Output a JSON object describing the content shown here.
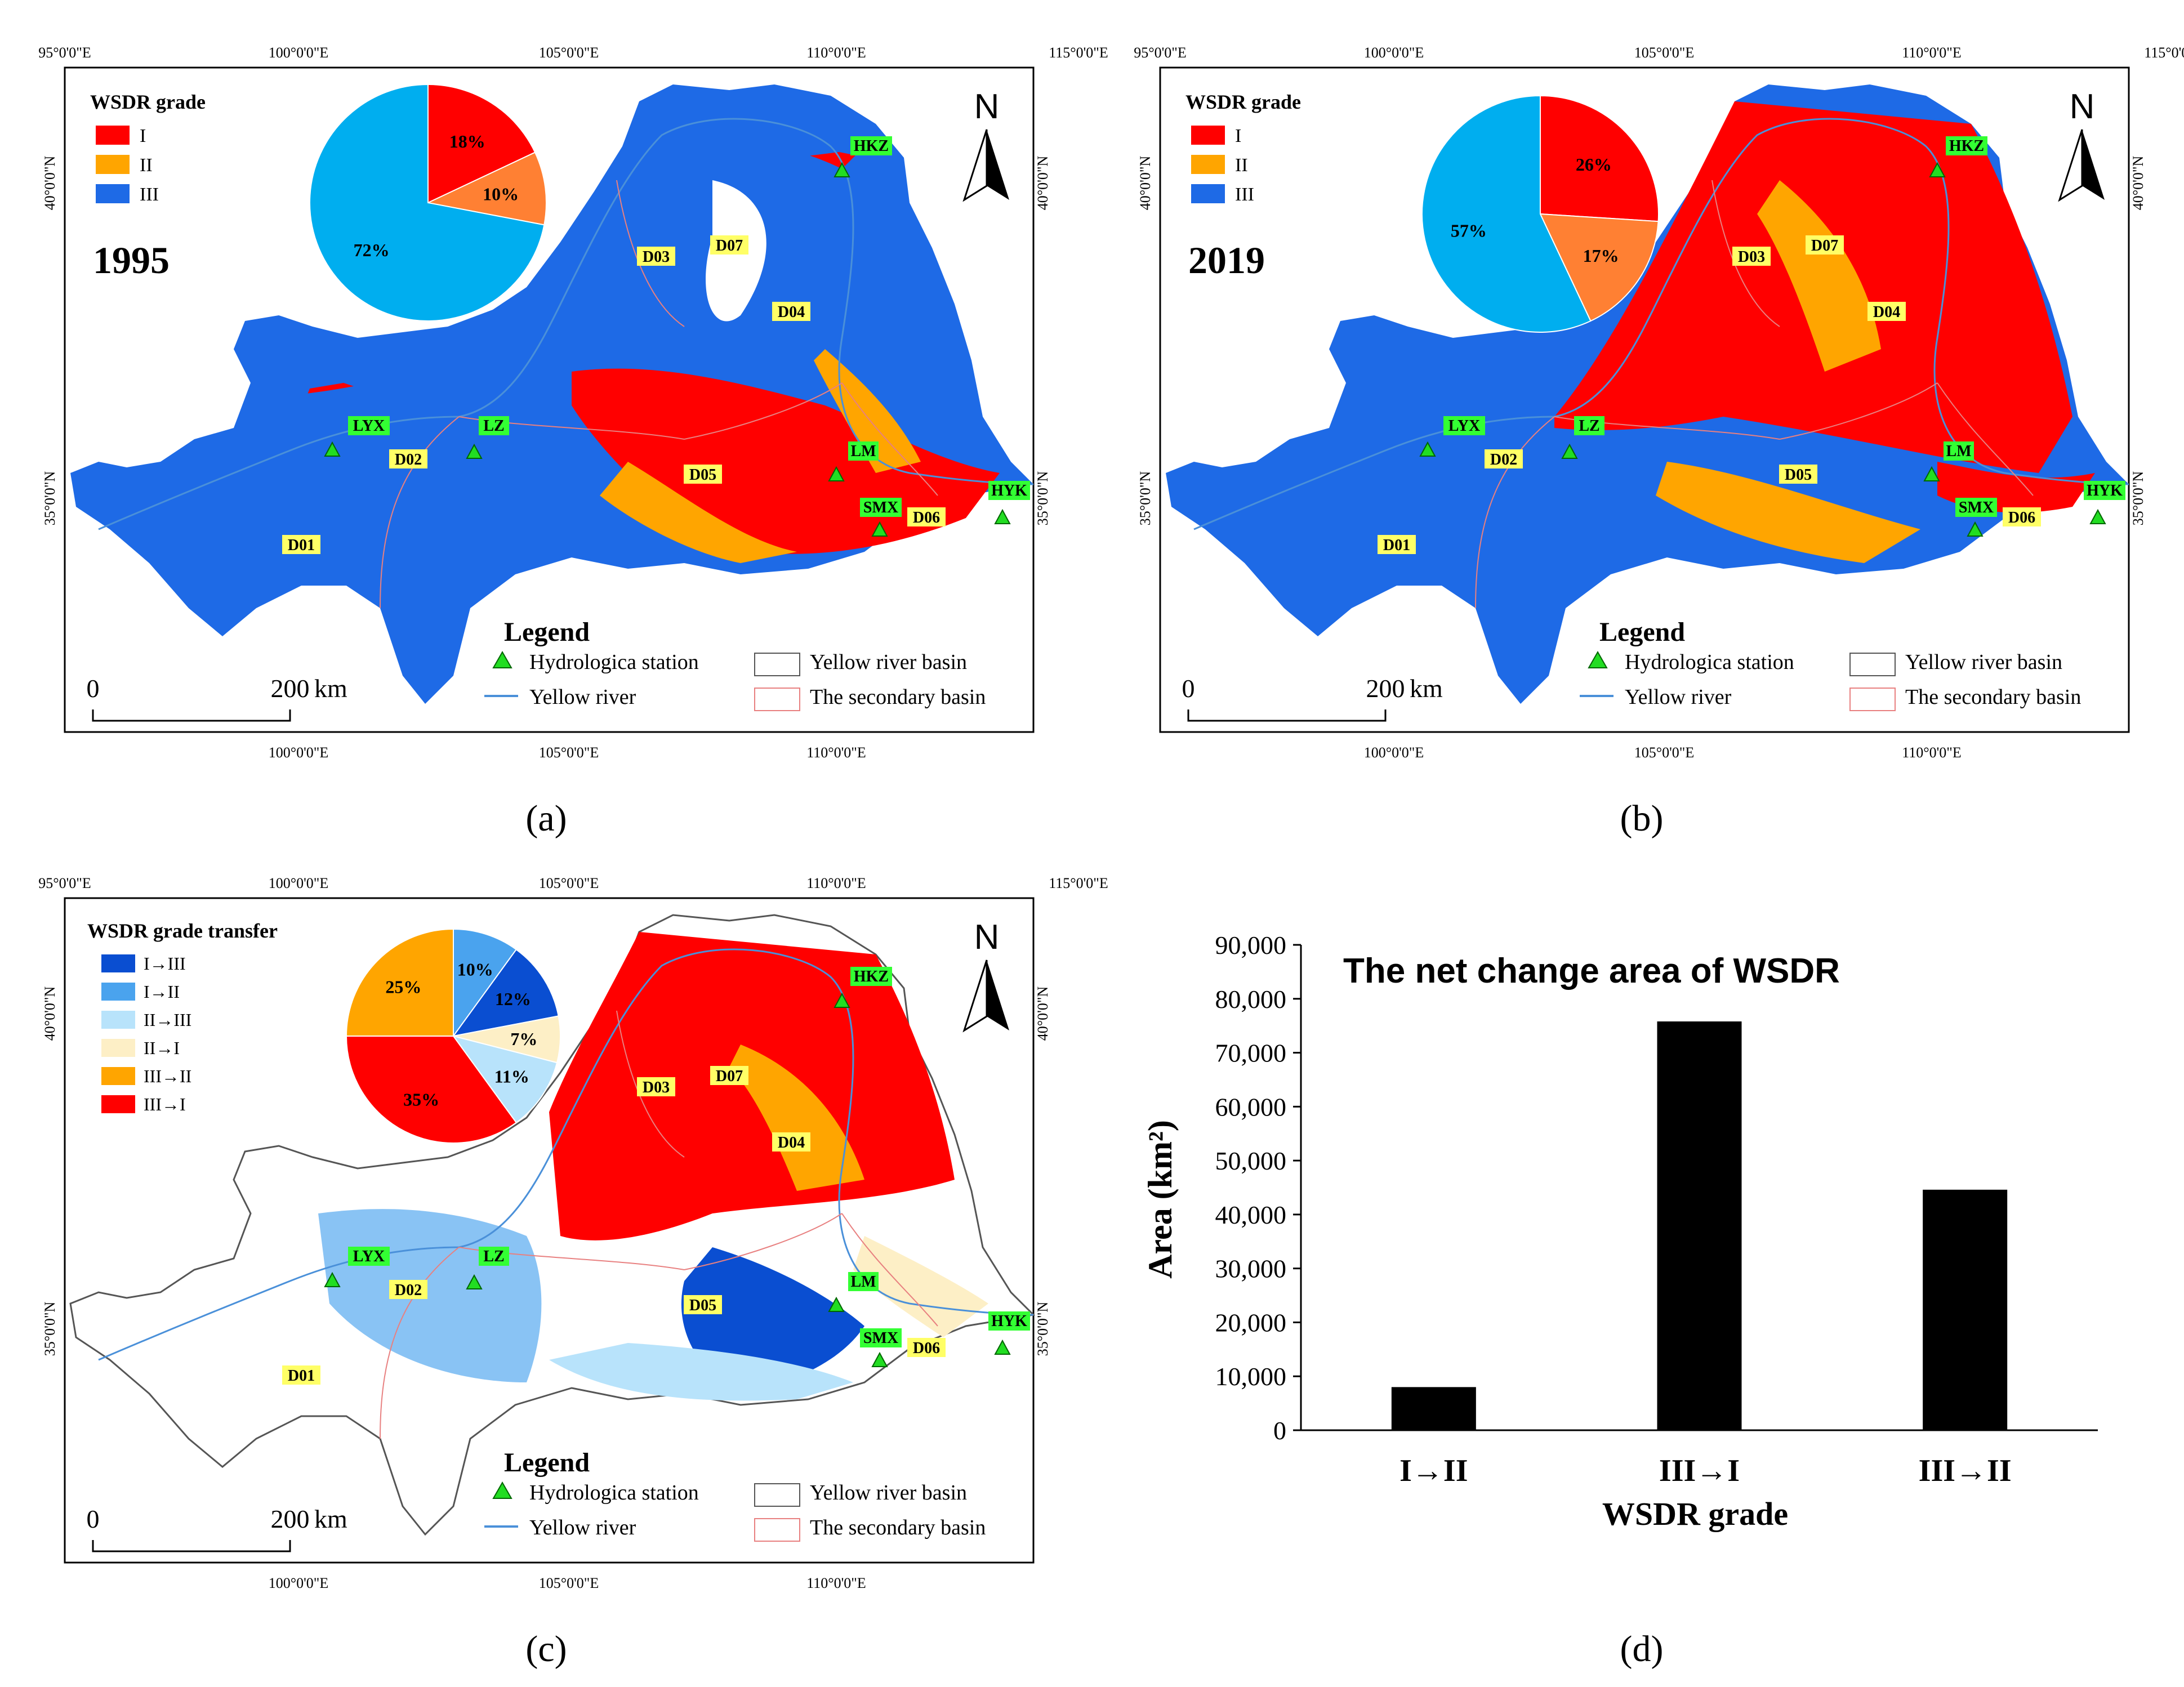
{
  "colors": {
    "grade_I": "#ff0000",
    "grade_II": "#ffa500",
    "grade_III": "#1e6ae6",
    "pie_I": "#ff0000",
    "pie_II": "#ff8033",
    "pie_III": "#00aeef",
    "t_I_III": "#0a4ed1",
    "t_I_II": "#4aa3ee",
    "t_II_III": "#b8e3fb",
    "t_II_I": "#fdefc6",
    "t_III_II": "#ffa500",
    "t_III_I": "#ff0000",
    "station": "#22dd22",
    "label_bg": "#ffff66",
    "station_label_bg": "#33ff33",
    "river": "#4a90d9",
    "basin_outline": "#555555",
    "secondary_basin": "#e88080"
  },
  "axis_ticks": {
    "lon": [
      "95°0'0\"E",
      "100°0'0\"E",
      "105°0'0\"E",
      "110°0'0\"E",
      "115°0'0\"E"
    ],
    "lon_bottom": [
      "100°0'0\"E",
      "105°0'0\"E",
      "110°0'0\"E"
    ],
    "lat": [
      "40°0'0\"N",
      "35°0'0\"N"
    ]
  },
  "basins": [
    "D01",
    "D02",
    "D03",
    "D04",
    "D05",
    "D06",
    "D07"
  ],
  "stations": [
    "LYX",
    "LZ",
    "HKZ",
    "LM",
    "SMX",
    "HYK"
  ],
  "north": "N",
  "scale": {
    "zero": "0",
    "length": "200",
    "unit": "km"
  },
  "legend": {
    "title": "Legend",
    "station": "Hydrologica station",
    "river": "Yellow river",
    "basin": "Yellow river basin",
    "secondary": "The secondary basin"
  },
  "panel_a": {
    "label": "(a)",
    "year": "1995",
    "legend_title": "WSDR grade",
    "legend_items": [
      "I",
      "II",
      "III"
    ],
    "pie": [
      {
        "label": "18%",
        "value": 18
      },
      {
        "label": "10%",
        "value": 10
      },
      {
        "label": "72%",
        "value": 72
      }
    ]
  },
  "panel_b": {
    "label": "(b)",
    "year": "2019",
    "legend_title": "WSDR grade",
    "legend_items": [
      "I",
      "II",
      "III"
    ],
    "pie": [
      {
        "label": "26%",
        "value": 26
      },
      {
        "label": "17%",
        "value": 17
      },
      {
        "label": "57%",
        "value": 57
      }
    ]
  },
  "panel_c": {
    "label": "(c)",
    "legend_title": "WSDR grade transfer",
    "legend_items": [
      "I→III",
      "I→II",
      "II→III",
      "II→I",
      "III→II",
      "III→I"
    ],
    "pie": [
      {
        "label": "10%",
        "value": 10
      },
      {
        "label": "12%",
        "value": 12
      },
      {
        "label": "7%",
        "value": 7
      },
      {
        "label": "11%",
        "value": 11
      },
      {
        "label": "35%",
        "value": 35
      },
      {
        "label": "25%",
        "value": 25
      }
    ]
  },
  "panel_d": {
    "label": "(d)",
    "chart_data": {
      "type": "bar",
      "title": "The net change area of WSDR",
      "xlabel": "WSDR grade",
      "ylabel": "Area (km²)",
      "categories": [
        "I→II",
        "III→I",
        "III→II"
      ],
      "values": [
        8000,
        75800,
        44600
      ],
      "ylim": [
        0,
        90000
      ],
      "yticks": [
        "0",
        "10,000",
        "20,000",
        "30,000",
        "40,000",
        "50,000",
        "60,000",
        "70,000",
        "80,000",
        "90,000"
      ],
      "bar_color": "#000000",
      "grid": false
    }
  }
}
